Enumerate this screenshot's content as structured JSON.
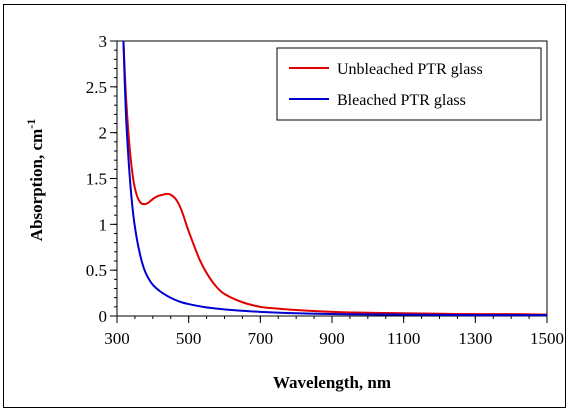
{
  "chart_data": {
    "type": "line",
    "title": "",
    "xlabel": "Wavelength, nm",
    "ylabel_main": "Absorption, cm",
    "ylabel_sup": "-1",
    "xlim": [
      300,
      1500
    ],
    "ylim": [
      0,
      3
    ],
    "xticks": [
      300,
      500,
      700,
      900,
      1100,
      1300,
      1500
    ],
    "yticks": [
      0,
      0.5,
      1,
      1.5,
      2,
      2.5,
      3
    ],
    "grid": false,
    "legend_position": "top-right",
    "series": [
      {
        "name": "Unbleached PTR glass",
        "color": "#e00000",
        "x": [
          318,
          325,
          335,
          345,
          355,
          365,
          375,
          385,
          395,
          405,
          415,
          425,
          435,
          445,
          455,
          465,
          475,
          485,
          495,
          510,
          530,
          550,
          575,
          600,
          650,
          700,
          750,
          800,
          900,
          1000,
          1100,
          1200,
          1300,
          1400,
          1500
        ],
        "y": [
          3.0,
          2.4,
          1.85,
          1.5,
          1.32,
          1.24,
          1.22,
          1.23,
          1.26,
          1.29,
          1.31,
          1.32,
          1.33,
          1.33,
          1.31,
          1.27,
          1.2,
          1.1,
          0.98,
          0.82,
          0.62,
          0.47,
          0.33,
          0.24,
          0.15,
          0.1,
          0.08,
          0.065,
          0.045,
          0.035,
          0.03,
          0.025,
          0.02,
          0.02,
          0.015
        ]
      },
      {
        "name": "Bleached PTR glass",
        "color": "#0000d0",
        "x": [
          318,
          325,
          335,
          345,
          355,
          365,
          375,
          385,
          400,
          420,
          440,
          460,
          480,
          500,
          540,
          580,
          620,
          700,
          800,
          900,
          1000,
          1100,
          1200,
          1300,
          1400,
          1500
        ],
        "y": [
          3.0,
          2.2,
          1.55,
          1.12,
          0.85,
          0.66,
          0.52,
          0.43,
          0.34,
          0.27,
          0.22,
          0.18,
          0.15,
          0.13,
          0.1,
          0.08,
          0.065,
          0.045,
          0.03,
          0.022,
          0.018,
          0.015,
          0.012,
          0.01,
          0.01,
          0.01
        ]
      }
    ]
  }
}
